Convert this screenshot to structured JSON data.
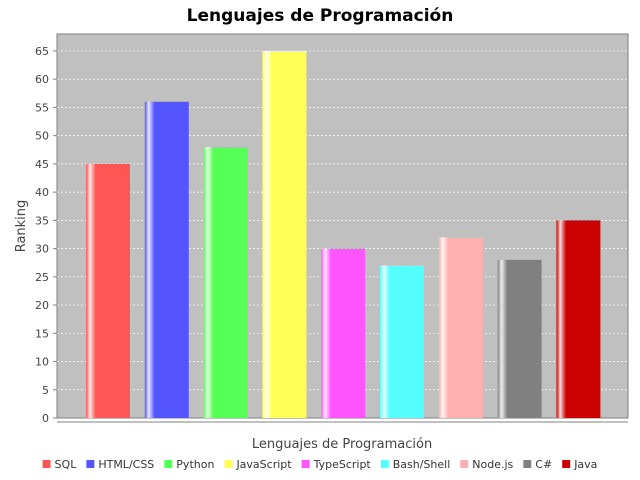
{
  "chart_data": {
    "type": "bar",
    "title": "Lenguajes de Programación",
    "xlabel": "Lenguajes de Programación",
    "ylabel": "Ranking",
    "ylim": [
      0,
      68
    ],
    "yticks": [
      0,
      5,
      10,
      15,
      20,
      25,
      30,
      35,
      40,
      45,
      50,
      55,
      60,
      65
    ],
    "grid": true,
    "legend_position": "bottom",
    "series": [
      {
        "name": "SQL",
        "value": 45,
        "color": "#ff5555"
      },
      {
        "name": "HTML/CSS",
        "value": 56,
        "color": "#5555ff"
      },
      {
        "name": "Python",
        "value": 48,
        "color": "#55ff55"
      },
      {
        "name": "JavaScript",
        "value": 65,
        "color": "#ffff55"
      },
      {
        "name": "TypeScript",
        "value": 30,
        "color": "#ff55ff"
      },
      {
        "name": "Bash/Shell",
        "value": 27,
        "color": "#55ffff"
      },
      {
        "name": "Node.js",
        "value": 32,
        "color": "#ffafaf"
      },
      {
        "name": "C#",
        "value": 28,
        "color": "#808080"
      },
      {
        "name": "Java",
        "value": 35,
        "color": "#cc0000"
      }
    ]
  }
}
